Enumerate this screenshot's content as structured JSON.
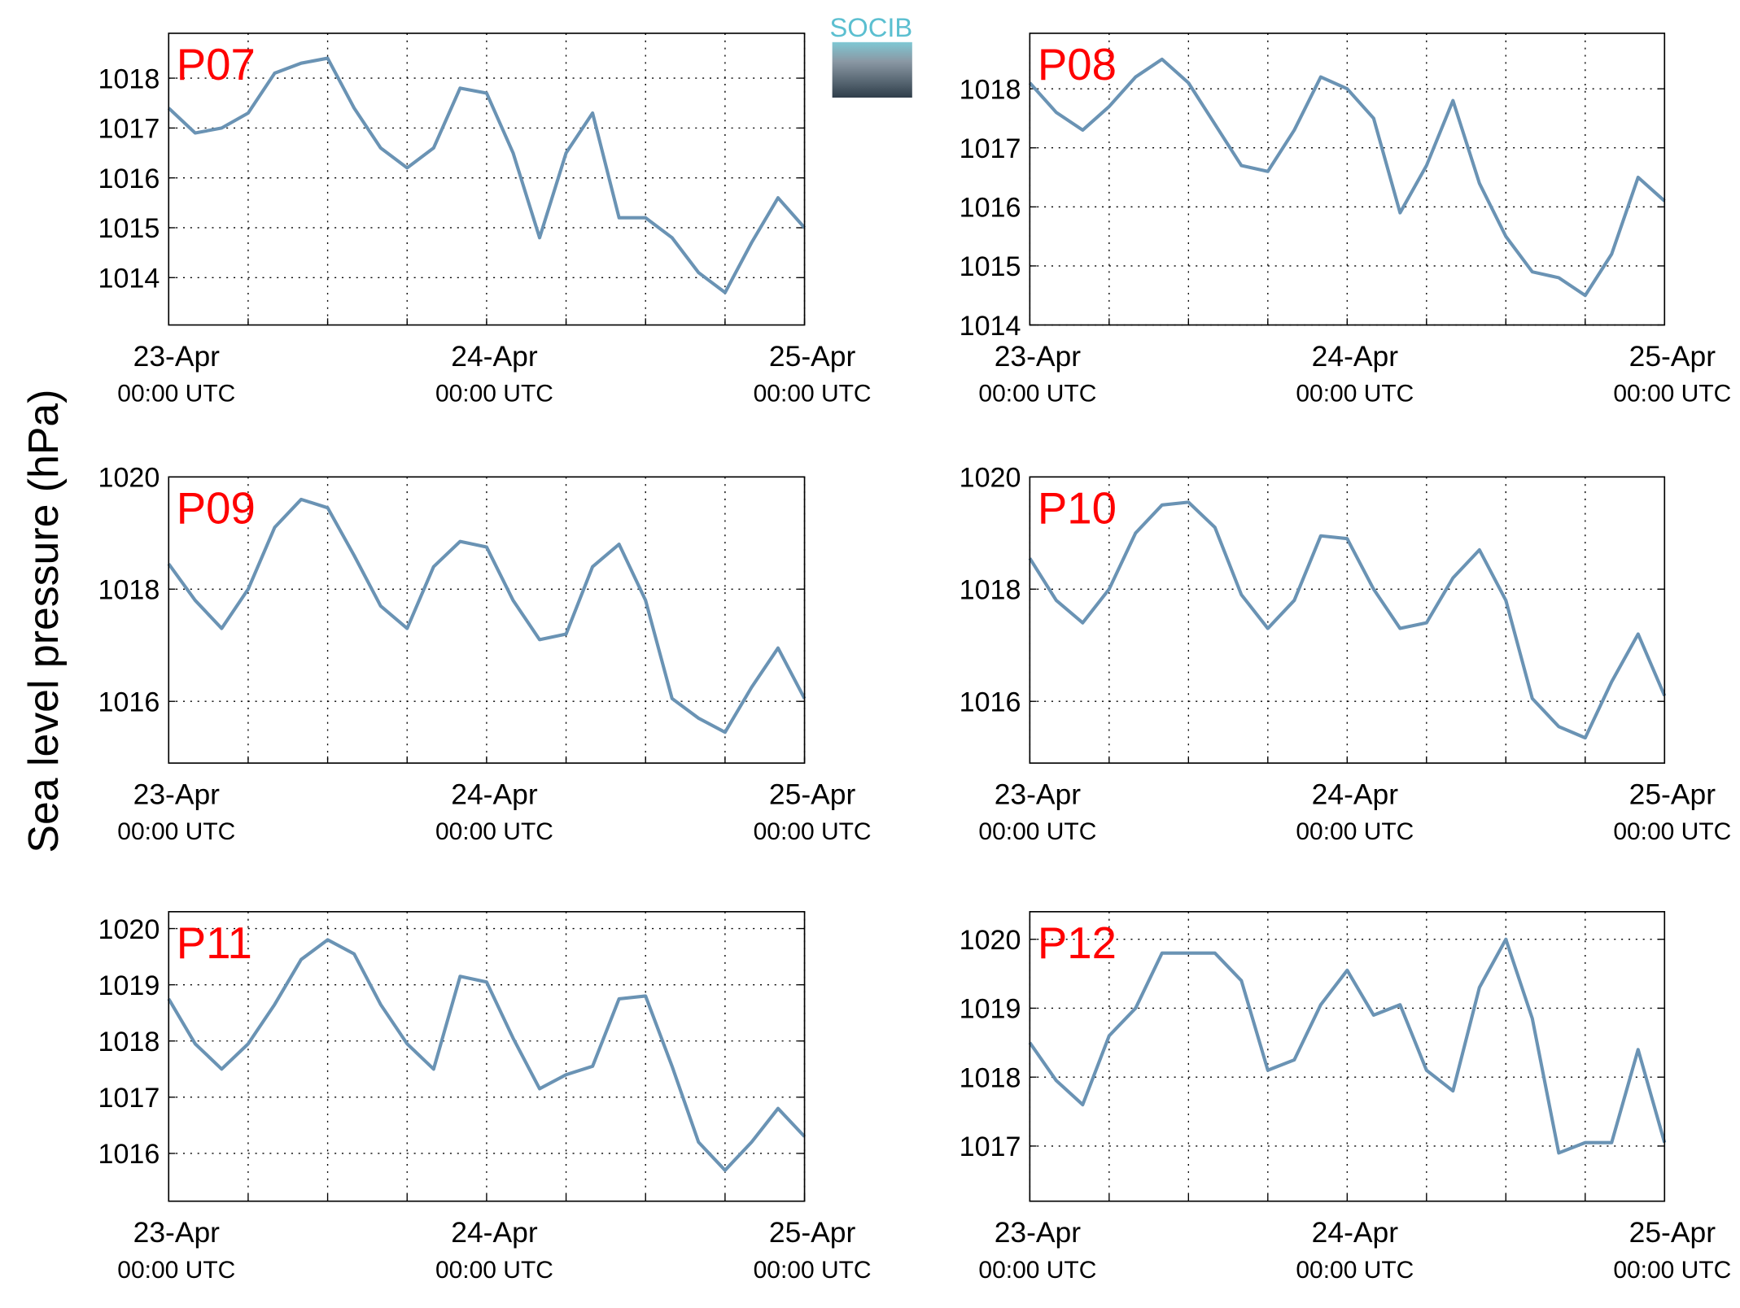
{
  "ylabel": "Sea level pressure (hPa)",
  "logo": "SOCIB",
  "chart_data": [
    {
      "type": "line",
      "title": "P07",
      "color": "#6a93b4",
      "grid": true,
      "x": [
        0,
        2,
        4,
        6,
        8,
        10,
        12,
        14,
        16,
        18,
        20,
        22,
        24,
        26,
        28,
        30,
        32,
        34,
        36,
        38,
        40,
        42,
        44,
        46,
        48
      ],
      "values": [
        1017.4,
        1016.9,
        1017.0,
        1017.3,
        1018.1,
        1018.3,
        1018.4,
        1017.4,
        1016.6,
        1016.2,
        1016.6,
        1017.8,
        1017.7,
        1016.5,
        1014.8,
        1016.5,
        1017.3,
        1015.2,
        1015.2,
        1014.8,
        1014.1,
        1013.7,
        1014.7,
        1015.6,
        1015.0
      ],
      "xlim": [
        0,
        48
      ],
      "xticks": [
        {
          "value": 0,
          "label": [
            "23-Apr",
            "00:00 UTC"
          ]
        },
        {
          "value": 24,
          "label": [
            "24-Apr",
            "00:00 UTC"
          ]
        },
        {
          "value": 48,
          "label": [
            "25-Apr",
            "00:00 UTC"
          ]
        }
      ],
      "xminor": [
        6,
        12,
        18,
        30,
        36,
        42
      ],
      "ylim": [
        1013.05,
        1018.9
      ],
      "yticks": [
        1014,
        1015,
        1016,
        1017,
        1018
      ]
    },
    {
      "type": "line",
      "title": "P08",
      "color": "#6a93b4",
      "grid": true,
      "x": [
        0,
        2,
        4,
        6,
        8,
        10,
        12,
        14,
        16,
        18,
        20,
        22,
        24,
        26,
        28,
        30,
        32,
        34,
        36,
        38,
        40,
        42,
        44,
        46,
        48
      ],
      "values": [
        1018.1,
        1017.6,
        1017.3,
        1017.7,
        1018.2,
        1018.5,
        1018.1,
        1017.4,
        1016.7,
        1016.6,
        1017.3,
        1018.2,
        1018.0,
        1017.5,
        1015.9,
        1016.7,
        1017.8,
        1016.4,
        1015.5,
        1014.9,
        1014.8,
        1014.5,
        1015.2,
        1016.5,
        1016.1
      ],
      "xlim": [
        0,
        48
      ],
      "xticks": [
        {
          "value": 0,
          "label": [
            "23-Apr",
            "00:00 UTC"
          ]
        },
        {
          "value": 24,
          "label": [
            "24-Apr",
            "00:00 UTC"
          ]
        },
        {
          "value": 48,
          "label": [
            "25-Apr",
            "00:00 UTC"
          ]
        }
      ],
      "xminor": [
        6,
        12,
        18,
        30,
        36,
        42
      ],
      "ylim": [
        1014,
        1018.94
      ],
      "yticks": [
        1014,
        1015,
        1016,
        1017,
        1018
      ]
    },
    {
      "type": "line",
      "title": "P09",
      "color": "#6a93b4",
      "grid": true,
      "x": [
        0,
        2,
        4,
        6,
        8,
        10,
        12,
        14,
        16,
        18,
        20,
        22,
        24,
        26,
        28,
        30,
        32,
        34,
        36,
        38,
        40,
        42,
        44,
        46,
        48
      ],
      "values": [
        1018.45,
        1017.8,
        1017.3,
        1018.0,
        1019.1,
        1019.6,
        1019.45,
        1018.6,
        1017.7,
        1017.3,
        1018.4,
        1018.85,
        1018.75,
        1017.8,
        1017.1,
        1017.2,
        1018.4,
        1018.8,
        1017.8,
        1016.05,
        1015.7,
        1015.45,
        1016.25,
        1016.95,
        1016.05
      ],
      "xlim": [
        0,
        48
      ],
      "xticks": [
        {
          "value": 0,
          "label": [
            "23-Apr",
            "00:00 UTC"
          ]
        },
        {
          "value": 24,
          "label": [
            "24-Apr",
            "00:00 UTC"
          ]
        },
        {
          "value": 48,
          "label": [
            "25-Apr",
            "00:00 UTC"
          ]
        }
      ],
      "xminor": [
        6,
        12,
        18,
        30,
        36,
        42
      ],
      "ylim": [
        1014.9,
        1020
      ],
      "yticks": [
        1016,
        1018,
        1020
      ]
    },
    {
      "type": "line",
      "title": "P10",
      "color": "#6a93b4",
      "grid": true,
      "x": [
        0,
        2,
        4,
        6,
        8,
        10,
        12,
        14,
        16,
        18,
        20,
        22,
        24,
        26,
        28,
        30,
        32,
        34,
        36,
        38,
        40,
        42,
        44,
        46,
        48
      ],
      "values": [
        1018.55,
        1017.8,
        1017.4,
        1018.0,
        1019.0,
        1019.5,
        1019.55,
        1019.1,
        1017.9,
        1017.3,
        1017.8,
        1018.95,
        1018.9,
        1018.0,
        1017.3,
        1017.4,
        1018.2,
        1018.7,
        1017.8,
        1016.05,
        1015.55,
        1015.35,
        1016.35,
        1017.2,
        1016.1
      ],
      "xlim": [
        0,
        48
      ],
      "xticks": [
        {
          "value": 0,
          "label": [
            "23-Apr",
            "00:00 UTC"
          ]
        },
        {
          "value": 24,
          "label": [
            "24-Apr",
            "00:00 UTC"
          ]
        },
        {
          "value": 48,
          "label": [
            "25-Apr",
            "00:00 UTC"
          ]
        }
      ],
      "xminor": [
        6,
        12,
        18,
        30,
        36,
        42
      ],
      "ylim": [
        1014.9,
        1020
      ],
      "yticks": [
        1016,
        1018,
        1020
      ]
    },
    {
      "type": "line",
      "title": "P11",
      "color": "#6a93b4",
      "grid": true,
      "x": [
        0,
        2,
        4,
        6,
        8,
        10,
        12,
        14,
        16,
        18,
        20,
        22,
        24,
        26,
        28,
        30,
        32,
        34,
        36,
        38,
        40,
        42,
        44,
        46,
        48
      ],
      "values": [
        1018.75,
        1017.95,
        1017.5,
        1017.95,
        1018.65,
        1019.45,
        1019.8,
        1019.55,
        1018.65,
        1017.95,
        1017.5,
        1019.15,
        1019.05,
        1018.05,
        1017.15,
        1017.4,
        1017.55,
        1018.75,
        1018.8,
        1017.55,
        1016.2,
        1015.7,
        1016.2,
        1016.8,
        1016.3
      ],
      "xlim": [
        0,
        48
      ],
      "xticks": [
        {
          "value": 0,
          "label": [
            "23-Apr",
            "00:00 UTC"
          ]
        },
        {
          "value": 24,
          "label": [
            "24-Apr",
            "00:00 UTC"
          ]
        },
        {
          "value": 48,
          "label": [
            "25-Apr",
            "00:00 UTC"
          ]
        }
      ],
      "xminor": [
        6,
        12,
        18,
        30,
        36,
        42
      ],
      "ylim": [
        1015.15,
        1020.3
      ],
      "yticks": [
        1016,
        1017,
        1018,
        1019,
        1020
      ]
    },
    {
      "type": "line",
      "title": "P12",
      "color": "#6a93b4",
      "grid": true,
      "x": [
        0,
        2,
        4,
        6,
        8,
        10,
        12,
        14,
        16,
        18,
        20,
        22,
        24,
        26,
        28,
        30,
        32,
        34,
        36,
        38,
        40,
        42,
        44,
        46,
        48
      ],
      "values": [
        1018.5,
        1017.95,
        1017.6,
        1018.6,
        1019.0,
        1019.8,
        1019.8,
        1019.8,
        1019.4,
        1018.1,
        1018.25,
        1019.05,
        1019.55,
        1018.9,
        1019.05,
        1018.1,
        1017.8,
        1019.3,
        1020.0,
        1018.85,
        1016.9,
        1017.05,
        1017.05,
        1018.4,
        1017.05
      ],
      "xlim": [
        0,
        48
      ],
      "xticks": [
        {
          "value": 0,
          "label": [
            "23-Apr",
            "00:00 UTC"
          ]
        },
        {
          "value": 24,
          "label": [
            "24-Apr",
            "00:00 UTC"
          ]
        },
        {
          "value": 48,
          "label": [
            "25-Apr",
            "00:00 UTC"
          ]
        }
      ],
      "xminor": [
        6,
        12,
        18,
        30,
        36,
        42
      ],
      "ylim": [
        1016.2,
        1020.4
      ],
      "yticks": [
        1017,
        1018,
        1019,
        1020
      ]
    }
  ]
}
